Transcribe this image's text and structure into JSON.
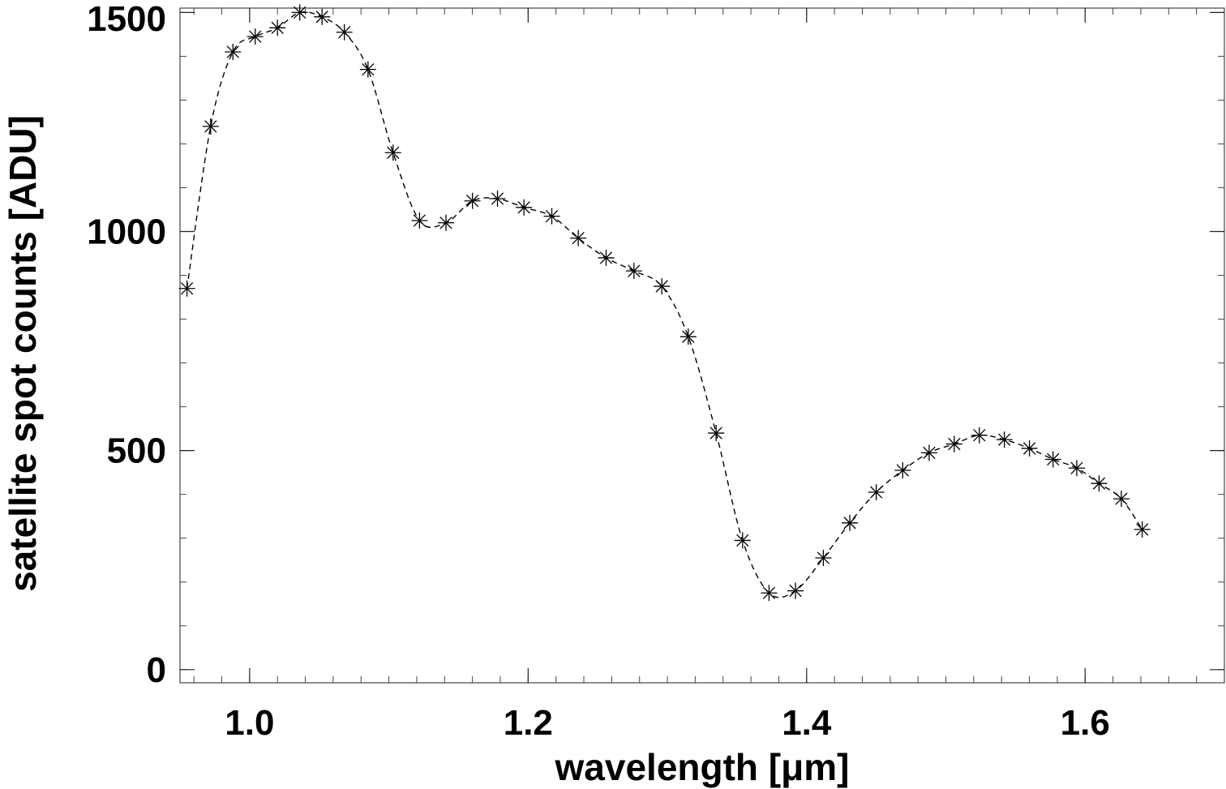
{
  "chart_data": {
    "type": "line",
    "title": "",
    "xlabel": "wavelength [μm]",
    "ylabel": "satellite spot counts [ADU]",
    "xlim": [
      0.95,
      1.7
    ],
    "ylim": [
      -30,
      1510
    ],
    "grid": false,
    "marker": "asterisk",
    "line_style": "dashed",
    "x_ticks": [
      1.0,
      1.2,
      1.4,
      1.6
    ],
    "x_tick_labels": [
      "1.0",
      "1.2",
      "1.4",
      "1.6"
    ],
    "x_minor_step": 0.02,
    "y_ticks": [
      0,
      500,
      1000,
      1500
    ],
    "y_tick_labels": [
      "0",
      "500",
      "1000",
      "1500"
    ],
    "y_minor_step": 100,
    "series": [
      {
        "x": [
          0.955,
          0.972,
          0.988,
          1.004,
          1.02,
          1.036,
          1.052,
          1.068,
          1.085,
          1.103,
          1.122,
          1.141,
          1.16,
          1.178,
          1.197,
          1.217,
          1.236,
          1.256,
          1.276,
          1.296,
          1.315,
          1.335,
          1.354,
          1.373,
          1.392,
          1.412,
          1.431,
          1.45,
          1.469,
          1.488,
          1.506,
          1.524,
          1.542,
          1.56,
          1.577,
          1.594,
          1.61,
          1.626,
          1.641
        ],
        "y": [
          870,
          1240,
          1410,
          1445,
          1465,
          1500,
          1490,
          1455,
          1370,
          1180,
          1025,
          1020,
          1070,
          1075,
          1055,
          1035,
          985,
          940,
          910,
          875,
          760,
          540,
          295,
          175,
          180,
          255,
          335,
          405,
          455,
          495,
          515,
          535,
          525,
          505,
          480,
          460,
          425,
          390,
          320
        ]
      }
    ]
  }
}
